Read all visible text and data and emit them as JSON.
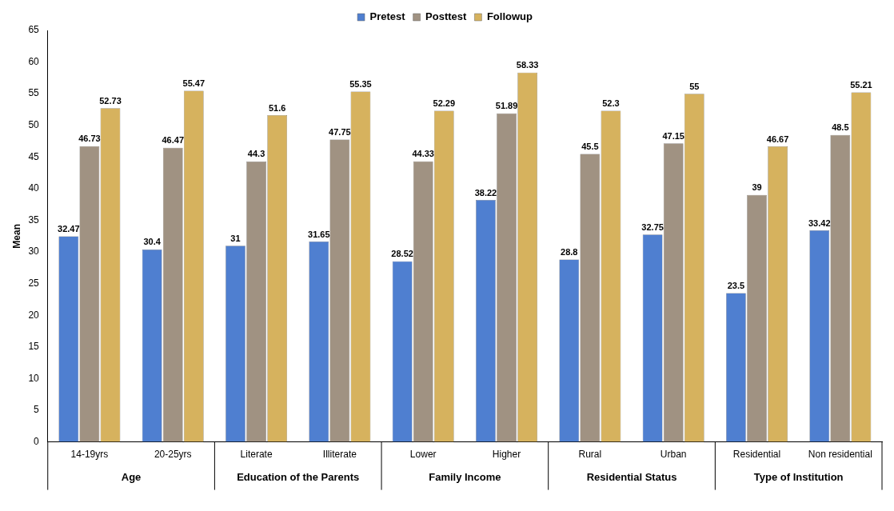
{
  "chart_data": {
    "type": "bar",
    "ylabel": "Mean",
    "categories": [
      "14-19yrs",
      "20-25yrs",
      "Literate",
      "Illiterate",
      "Lower",
      "Higher",
      "Rural",
      "Urban",
      "Residential",
      "Non residential"
    ],
    "series": [
      {
        "name": "Pretest",
        "color": "#4f7fd0",
        "values": [
          32.47,
          30.4,
          31,
          31.65,
          28.52,
          38.22,
          28.8,
          32.75,
          23.5,
          33.42
        ]
      },
      {
        "name": "Posttest",
        "color": "#a09282",
        "values": [
          46.73,
          46.47,
          44.3,
          47.75,
          44.33,
          51.89,
          45.5,
          47.15,
          39,
          48.5
        ]
      },
      {
        "name": "Followup",
        "color": "#d6b25e",
        "values": [
          52.73,
          55.47,
          51.6,
          55.35,
          52.29,
          58.33,
          52.3,
          55,
          46.67,
          55.21
        ]
      }
    ],
    "ylim": [
      0,
      65
    ],
    "yticks": [
      0,
      5,
      10,
      15,
      20,
      25,
      30,
      35,
      40,
      45,
      50,
      55,
      60,
      65
    ],
    "grid": false,
    "legend": "top",
    "data_labels": true,
    "annotations": [
      "Age",
      "Education of the Parents",
      "Family Income",
      "Residential Status",
      "Type of Institution"
    ]
  }
}
